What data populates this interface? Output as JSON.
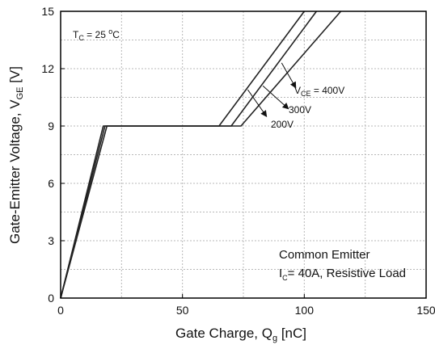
{
  "chart_data": {
    "type": "line",
    "title": "",
    "xlabel": {
      "main": "Gate Charge, Q",
      "sub": "g",
      "unit": " [nC]"
    },
    "ylabel": {
      "main": "Gate-Emitter Voltage, V",
      "sub": "GE",
      "unit": " [V]"
    },
    "xlim": [
      0,
      150
    ],
    "ylim": [
      0,
      15
    ],
    "x_ticks": [
      "0",
      "50",
      "100",
      "150"
    ],
    "y_ticks": [
      "0",
      "3",
      "6",
      "9",
      "12",
      "15"
    ],
    "grid": true,
    "series": [
      {
        "name": "200V",
        "x": [
          0,
          17.5,
          65,
          100
        ],
        "y": [
          0,
          9,
          9,
          15
        ]
      },
      {
        "name": "300V",
        "x": [
          0,
          18.2,
          70,
          105
        ],
        "y": [
          0,
          9,
          9,
          15
        ]
      },
      {
        "name": "400V",
        "x": [
          0,
          19,
          74,
          115
        ],
        "y": [
          0,
          9,
          9,
          15
        ]
      }
    ],
    "annotations": {
      "temperature": {
        "prefix": "T",
        "sub": "C",
        "value": " = 25 ",
        "sup": "o",
        "unit": "C"
      },
      "vce_label": {
        "prefix": "V",
        "sub": "CE",
        "value": " = 400V"
      },
      "label_300": "300V",
      "label_200": "200V",
      "condition_line1": "Common Emitter",
      "condition_line2": {
        "prefix": "I",
        "sub": "C",
        "value": "= 40A, Resistive Load"
      }
    },
    "colors": {
      "line": "#222222",
      "grid": "#b8b8b8",
      "axis": "#000000"
    }
  }
}
